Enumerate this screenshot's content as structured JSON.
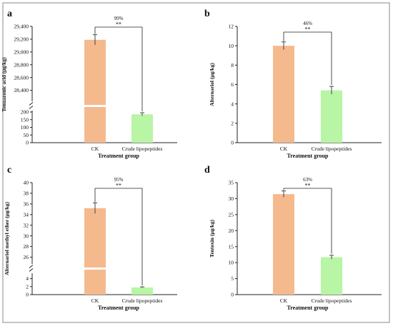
{
  "colors": {
    "ck": "#f5b98e",
    "lipopeptides": "#b8f5a4",
    "axis": "#222222",
    "frame": "#8a8a8a",
    "error_bar": "#444444"
  },
  "chart_data": [
    {
      "panel_label": "a",
      "type": "bar",
      "categories": [
        "CK",
        "Crude lipopeptides"
      ],
      "values": [
        29190,
        185
      ],
      "errors": [
        80,
        10
      ],
      "xlabel": "Treatment group",
      "ylabel": "Tenuazonic acid (μg/kg)",
      "broken_axis": true,
      "lower_range": [
        0,
        200
      ],
      "upper_range": [
        28250,
        29400
      ],
      "lower_ticks": [
        0,
        50,
        100,
        150,
        200
      ],
      "upper_ticks": [
        28400,
        28600,
        28800,
        29000,
        29200,
        29400
      ],
      "lower_tick_labels": [
        "0",
        "50",
        "100",
        "150",
        "200"
      ],
      "upper_tick_labels": [
        "28,400",
        "28,600",
        "28,800",
        "29,000",
        "29,200",
        "29,400"
      ],
      "reduction_label": "99%",
      "significance": "**"
    },
    {
      "panel_label": "b",
      "type": "bar",
      "categories": [
        "CK",
        "Crude lipopeptides"
      ],
      "values": [
        10.0,
        5.4
      ],
      "errors": [
        0.4,
        0.4
      ],
      "xlabel": "Treatment group",
      "ylabel": "Alternariol (μg/kg)",
      "broken_axis": false,
      "ylim": [
        0,
        12
      ],
      "ticks": [
        0,
        2,
        4,
        6,
        8,
        10,
        12
      ],
      "tick_labels": [
        "0",
        "2",
        "4",
        "6",
        "8",
        "10",
        "12"
      ],
      "reduction_label": "46%",
      "significance": "**"
    },
    {
      "panel_label": "c",
      "type": "bar",
      "categories": [
        "CK",
        "Crude lipopeptides"
      ],
      "values": [
        35.2,
        1.8
      ],
      "errors": [
        1.0,
        0.15
      ],
      "xlabel": "Treatment group",
      "ylabel": "Alternariol methyl ether (μg/kg)",
      "broken_axis": true,
      "lower_range": [
        0,
        5
      ],
      "upper_range": [
        25,
        40
      ],
      "lower_ticks": [
        0,
        2,
        4
      ],
      "upper_ticks": [
        26,
        28,
        30,
        32,
        34,
        36,
        38,
        40
      ],
      "lower_tick_labels": [
        "0",
        "2",
        "4"
      ],
      "upper_tick_labels": [
        "26",
        "28",
        "30",
        "32",
        "34",
        "36",
        "38",
        "40"
      ],
      "reduction_label": "95%",
      "significance": "**"
    },
    {
      "panel_label": "d",
      "type": "bar",
      "categories": [
        "CK",
        "Crude lipopeptides"
      ],
      "values": [
        31.4,
        11.7
      ],
      "errors": [
        1.0,
        0.6
      ],
      "xlabel": "Treatment group",
      "ylabel": "Tentoxin (μg/kg)",
      "broken_axis": false,
      "ylim": [
        0,
        35
      ],
      "ticks": [
        0,
        5,
        10,
        15,
        20,
        25,
        30,
        35
      ],
      "tick_labels": [
        "0",
        "5",
        "10",
        "15",
        "20",
        "25",
        "30",
        "35"
      ],
      "reduction_label": "63%",
      "significance": "**"
    }
  ]
}
